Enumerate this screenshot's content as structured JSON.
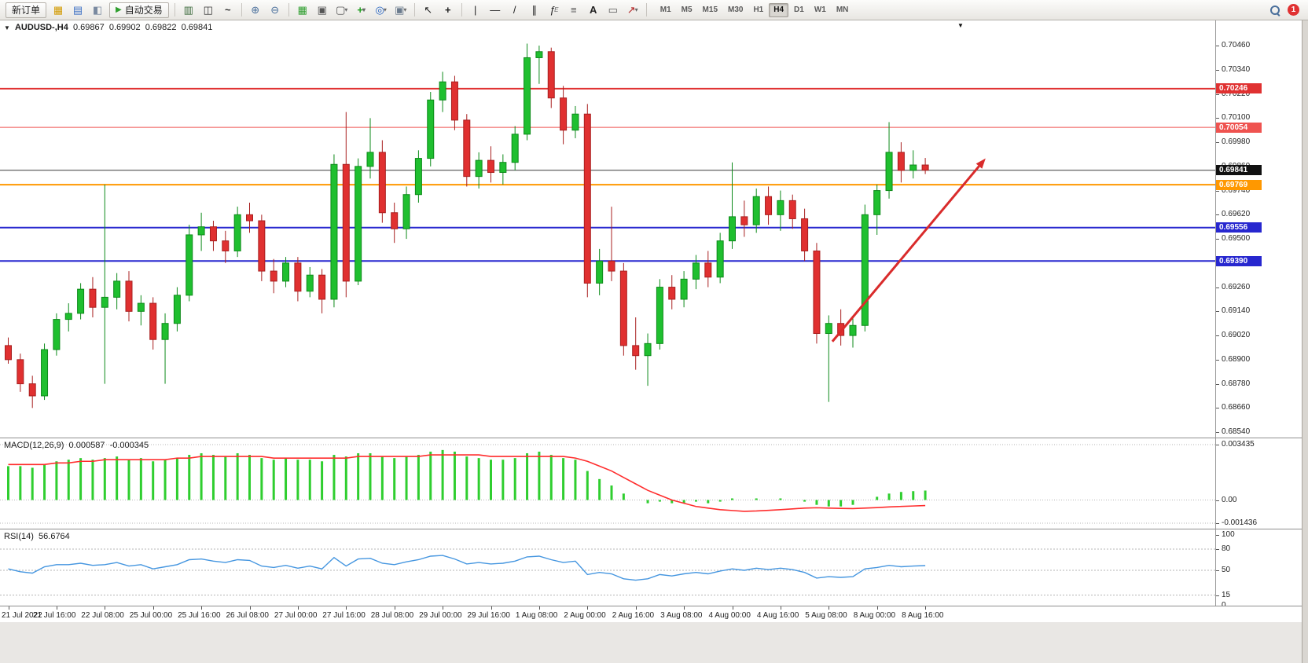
{
  "toolbar": {
    "new_order_label": "新订单",
    "auto_trading_label": "自动交易",
    "timeframes": [
      "M1",
      "M5",
      "M15",
      "M30",
      "H1",
      "H4",
      "D1",
      "W1",
      "MN"
    ],
    "active_timeframe": "H4",
    "notification_count": "1"
  },
  "chart": {
    "header": {
      "collapse_icon": "▼",
      "symbol": "AUDUSD-,H4",
      "open": "0.69867",
      "high": "0.69902",
      "low": "0.69822",
      "close": "0.69841"
    },
    "price_axis_ticks": [
      "0.70460",
      "0.70340",
      "0.70220",
      "0.70100",
      "0.69980",
      "0.69860",
      "0.69740",
      "0.69620",
      "0.69500",
      "0.69380",
      "0.69260",
      "0.69140",
      "0.69020",
      "0.68900",
      "0.68780",
      "0.68660",
      "0.68540"
    ],
    "levels": [
      {
        "price": 0.70246,
        "label": "0.70246",
        "color": "#e03131",
        "width": 2,
        "tag": "#e03131",
        "name": "resistance-line-1"
      },
      {
        "price": 0.70054,
        "label": "0.70054",
        "color": "#ef5350",
        "width": 1,
        "tag": "#ef5350",
        "name": "resistance-line-2"
      },
      {
        "price": 0.69841,
        "label": "0.69841",
        "color": "#3a3a3a",
        "width": 1,
        "tag": "#111111",
        "name": "current-price-line",
        "current": true
      },
      {
        "price": 0.69769,
        "label": "0.69769",
        "color": "#ff9800",
        "width": 2,
        "tag": "#ff9800",
        "name": "pivot-line-orange"
      },
      {
        "price": 0.69556,
        "label": "0.69556",
        "color": "#2727cf",
        "width": 2,
        "tag": "#2727cf",
        "name": "support-line-1"
      },
      {
        "price": 0.6939,
        "label": "0.69390",
        "color": "#2727cf",
        "width": 2,
        "tag": "#2727cf",
        "name": "support-line-2"
      }
    ],
    "colors": {
      "up": "#1fbf2f",
      "up_stroke": "#0d8a1a",
      "down": "#e03030",
      "down_stroke": "#a81f1f",
      "arrow": "#d92b2b"
    }
  },
  "macd": {
    "title_name": "MACD(12,26,9)",
    "value": "0.000587",
    "signal_value": "-0.000345",
    "axis_max": 0.003435,
    "axis_min": -0.001436,
    "axis_max_label": "0.003435",
    "axis_zero_label": "0.00",
    "axis_min_label": "-0.001436",
    "hist_color": "#2fce2f",
    "signal_color": "#ff2d2d"
  },
  "rsi": {
    "title_name": "RSI(14)",
    "value": "56.6764",
    "levels": [
      100,
      80,
      50,
      15,
      0
    ],
    "dashed_levels": [
      80,
      50,
      15
    ],
    "line_color": "#4596e0"
  },
  "time_axis": {
    "bars_per_label": 4,
    "labels": [
      "21 Jul 2022",
      "21 Jul 16:00",
      "22 Jul 08:00",
      "25 Jul 00:00",
      "25 Jul 16:00",
      "26 Jul 08:00",
      "27 Jul 00:00",
      "27 Jul 16:00",
      "28 Jul 08:00",
      "29 Jul 00:00",
      "29 Jul 16:00",
      "1 Aug 08:00",
      "2 Aug 00:00",
      "2 Aug 16:00",
      "3 Aug 08:00",
      "4 Aug 00:00",
      "4 Aug 16:00",
      "5 Aug 08:00",
      "8 Aug 00:00",
      "8 Aug 16:00"
    ]
  },
  "chart_data": {
    "type": "candlestick",
    "symbol": "AUDUSD",
    "timeframe": "H4",
    "ohlc": [
      [
        0.6897,
        0.6901,
        0.6888,
        0.689
      ],
      [
        0.689,
        0.6893,
        0.6874,
        0.6878
      ],
      [
        0.6878,
        0.6882,
        0.6866,
        0.6872
      ],
      [
        0.6872,
        0.6898,
        0.687,
        0.6895
      ],
      [
        0.6895,
        0.6913,
        0.6892,
        0.691
      ],
      [
        0.691,
        0.6918,
        0.6904,
        0.6913
      ],
      [
        0.6913,
        0.6928,
        0.691,
        0.6925
      ],
      [
        0.6925,
        0.6931,
        0.6911,
        0.6916
      ],
      [
        0.6916,
        0.6977,
        0.6878,
        0.6921
      ],
      [
        0.6921,
        0.6933,
        0.6915,
        0.6929
      ],
      [
        0.6929,
        0.6934,
        0.6909,
        0.6914
      ],
      [
        0.6914,
        0.6922,
        0.6907,
        0.6918
      ],
      [
        0.6918,
        0.6921,
        0.6895,
        0.69
      ],
      [
        0.69,
        0.6913,
        0.6878,
        0.6908
      ],
      [
        0.6908,
        0.6926,
        0.6904,
        0.6922
      ],
      [
        0.6922,
        0.6957,
        0.6919,
        0.6952
      ],
      [
        0.6952,
        0.6963,
        0.6944,
        0.6956
      ],
      [
        0.6956,
        0.6959,
        0.6944,
        0.6949
      ],
      [
        0.6949,
        0.6954,
        0.6938,
        0.6944
      ],
      [
        0.6944,
        0.6966,
        0.6941,
        0.6962
      ],
      [
        0.6962,
        0.6968,
        0.6953,
        0.6959
      ],
      [
        0.6959,
        0.6962,
        0.6929,
        0.6934
      ],
      [
        0.6934,
        0.694,
        0.6923,
        0.6929
      ],
      [
        0.6929,
        0.6941,
        0.6926,
        0.6938
      ],
      [
        0.6938,
        0.6941,
        0.6919,
        0.6924
      ],
      [
        0.6924,
        0.6936,
        0.6921,
        0.6932
      ],
      [
        0.6932,
        0.6935,
        0.6913,
        0.692
      ],
      [
        0.692,
        0.6992,
        0.6916,
        0.6987
      ],
      [
        0.6987,
        0.7013,
        0.6921,
        0.6929
      ],
      [
        0.6929,
        0.699,
        0.6927,
        0.6986
      ],
      [
        0.6986,
        0.701,
        0.698,
        0.6993
      ],
      [
        0.6993,
        0.6999,
        0.6958,
        0.6963
      ],
      [
        0.6963,
        0.6968,
        0.6948,
        0.6955
      ],
      [
        0.6955,
        0.6976,
        0.695,
        0.6972
      ],
      [
        0.6972,
        0.6994,
        0.6968,
        0.699
      ],
      [
        0.699,
        0.7023,
        0.6986,
        0.7019
      ],
      [
        0.7019,
        0.7033,
        0.7013,
        0.7028
      ],
      [
        0.7028,
        0.7031,
        0.7004,
        0.7009
      ],
      [
        0.7009,
        0.7012,
        0.6976,
        0.6981
      ],
      [
        0.6981,
        0.6993,
        0.6975,
        0.6989
      ],
      [
        0.6989,
        0.6996,
        0.6978,
        0.6983
      ],
      [
        0.6983,
        0.6992,
        0.6977,
        0.6988
      ],
      [
        0.6988,
        0.7006,
        0.6984,
        0.7002
      ],
      [
        0.7002,
        0.7047,
        0.6999,
        0.704
      ],
      [
        0.704,
        0.7046,
        0.7027,
        0.7043
      ],
      [
        0.7043,
        0.7045,
        0.7015,
        0.702
      ],
      [
        0.702,
        0.7026,
        0.6997,
        0.7004
      ],
      [
        0.7004,
        0.7016,
        0.7,
        0.7012
      ],
      [
        0.7012,
        0.7017,
        0.6921,
        0.6928
      ],
      [
        0.6928,
        0.6945,
        0.6922,
        0.6939
      ],
      [
        0.6939,
        0.6966,
        0.6929,
        0.6934
      ],
      [
        0.6934,
        0.6938,
        0.6892,
        0.6897
      ],
      [
        0.6897,
        0.6911,
        0.6885,
        0.6892
      ],
      [
        0.6892,
        0.6903,
        0.6877,
        0.6898
      ],
      [
        0.6898,
        0.693,
        0.6895,
        0.6926
      ],
      [
        0.6926,
        0.6932,
        0.6915,
        0.692
      ],
      [
        0.692,
        0.6934,
        0.6916,
        0.693
      ],
      [
        0.693,
        0.6942,
        0.6925,
        0.6938
      ],
      [
        0.6938,
        0.6944,
        0.6926,
        0.6931
      ],
      [
        0.6931,
        0.6953,
        0.6928,
        0.6949
      ],
      [
        0.6949,
        0.6988,
        0.6945,
        0.6961
      ],
      [
        0.6961,
        0.6969,
        0.6951,
        0.6957
      ],
      [
        0.6957,
        0.6975,
        0.6953,
        0.6971
      ],
      [
        0.6971,
        0.6976,
        0.6957,
        0.6962
      ],
      [
        0.6962,
        0.6974,
        0.6954,
        0.6969
      ],
      [
        0.6969,
        0.6972,
        0.6955,
        0.696
      ],
      [
        0.696,
        0.6965,
        0.6939,
        0.6944
      ],
      [
        0.6944,
        0.6948,
        0.6898,
        0.6903
      ],
      [
        0.6903,
        0.6912,
        0.6869,
        0.6908
      ],
      [
        0.6908,
        0.6915,
        0.6897,
        0.6902
      ],
      [
        0.6902,
        0.6911,
        0.6896,
        0.6907
      ],
      [
        0.6907,
        0.6967,
        0.6904,
        0.6962
      ],
      [
        0.6962,
        0.6977,
        0.6952,
        0.6974
      ],
      [
        0.6974,
        0.7008,
        0.697,
        0.6993
      ],
      [
        0.6993,
        0.6998,
        0.6978,
        0.6984
      ],
      [
        0.6984,
        0.6994,
        0.698,
        0.69867
      ],
      [
        0.69867,
        0.69902,
        0.69822,
        0.69841
      ]
    ],
    "macd_hist": [
      0.0021,
      0.0021,
      0.002,
      0.0022,
      0.0024,
      0.0025,
      0.0026,
      0.0025,
      0.0026,
      0.0027,
      0.0025,
      0.0026,
      0.0024,
      0.0025,
      0.0026,
      0.0028,
      0.0029,
      0.0028,
      0.0027,
      0.0029,
      0.0028,
      0.0026,
      0.0025,
      0.0026,
      0.0025,
      0.0025,
      0.0024,
      0.0028,
      0.0027,
      0.0029,
      0.0029,
      0.0027,
      0.0026,
      0.0027,
      0.0028,
      0.003,
      0.0031,
      0.003,
      0.0027,
      0.0026,
      0.0025,
      0.0025,
      0.0026,
      0.0029,
      0.003,
      0.0028,
      0.0026,
      0.0025,
      0.0018,
      0.0013,
      0.0009,
      0.0004,
      0.0,
      -0.0002,
      -0.0001,
      -0.0002,
      -0.0002,
      -0.0001,
      -0.0002,
      -0.0001,
      0.0001,
      0.0,
      0.0001,
      0.0,
      0.0001,
      0.0,
      -0.0001,
      -0.0003,
      -0.0004,
      -0.0004,
      -0.0003,
      0.0,
      0.0002,
      0.0004,
      0.0005,
      0.00055,
      0.000587
    ],
    "macd_signal": [
      0.0022,
      0.0022,
      0.0022,
      0.0022,
      0.0023,
      0.0023,
      0.0024,
      0.0024,
      0.0025,
      0.0025,
      0.0025,
      0.0025,
      0.0025,
      0.0025,
      0.0026,
      0.0026,
      0.0027,
      0.0027,
      0.0027,
      0.0027,
      0.0027,
      0.0027,
      0.0026,
      0.0026,
      0.0026,
      0.0026,
      0.0026,
      0.0026,
      0.0026,
      0.0027,
      0.0027,
      0.0027,
      0.0027,
      0.0027,
      0.0027,
      0.0028,
      0.0028,
      0.0028,
      0.0028,
      0.0028,
      0.0027,
      0.0027,
      0.0027,
      0.0027,
      0.0027,
      0.0027,
      0.0027,
      0.0026,
      0.0024,
      0.0021,
      0.0018,
      0.0014,
      0.001,
      0.0006,
      0.0003,
      0.0,
      -0.0002,
      -0.0004,
      -0.0005,
      -0.0006,
      -0.00065,
      -0.0007,
      -0.00068,
      -0.00064,
      -0.0006,
      -0.00055,
      -0.0005,
      -0.00048,
      -0.0005,
      -0.00052,
      -0.00053,
      -0.0005,
      -0.00047,
      -0.00043,
      -0.0004,
      -0.00037,
      -0.000345
    ],
    "rsi_values": [
      52,
      48,
      46,
      55,
      58,
      58,
      60,
      57,
      58,
      61,
      56,
      58,
      52,
      55,
      58,
      65,
      66,
      63,
      61,
      65,
      64,
      56,
      54,
      57,
      53,
      56,
      52,
      68,
      56,
      66,
      67,
      60,
      58,
      62,
      65,
      70,
      71,
      66,
      59,
      61,
      59,
      60,
      63,
      69,
      70,
      65,
      61,
      63,
      44,
      47,
      45,
      38,
      36,
      38,
      44,
      42,
      45,
      47,
      45,
      49,
      52,
      50,
      53,
      51,
      53,
      51,
      47,
      39,
      41,
      40,
      41,
      52,
      54,
      57,
      55,
      56,
      56.6764
    ],
    "annotation": {
      "type": "trend-arrow",
      "from_bar": 68.3,
      "from_price": 0.6899,
      "to_bar": 81,
      "to_price": 0.699
    }
  }
}
